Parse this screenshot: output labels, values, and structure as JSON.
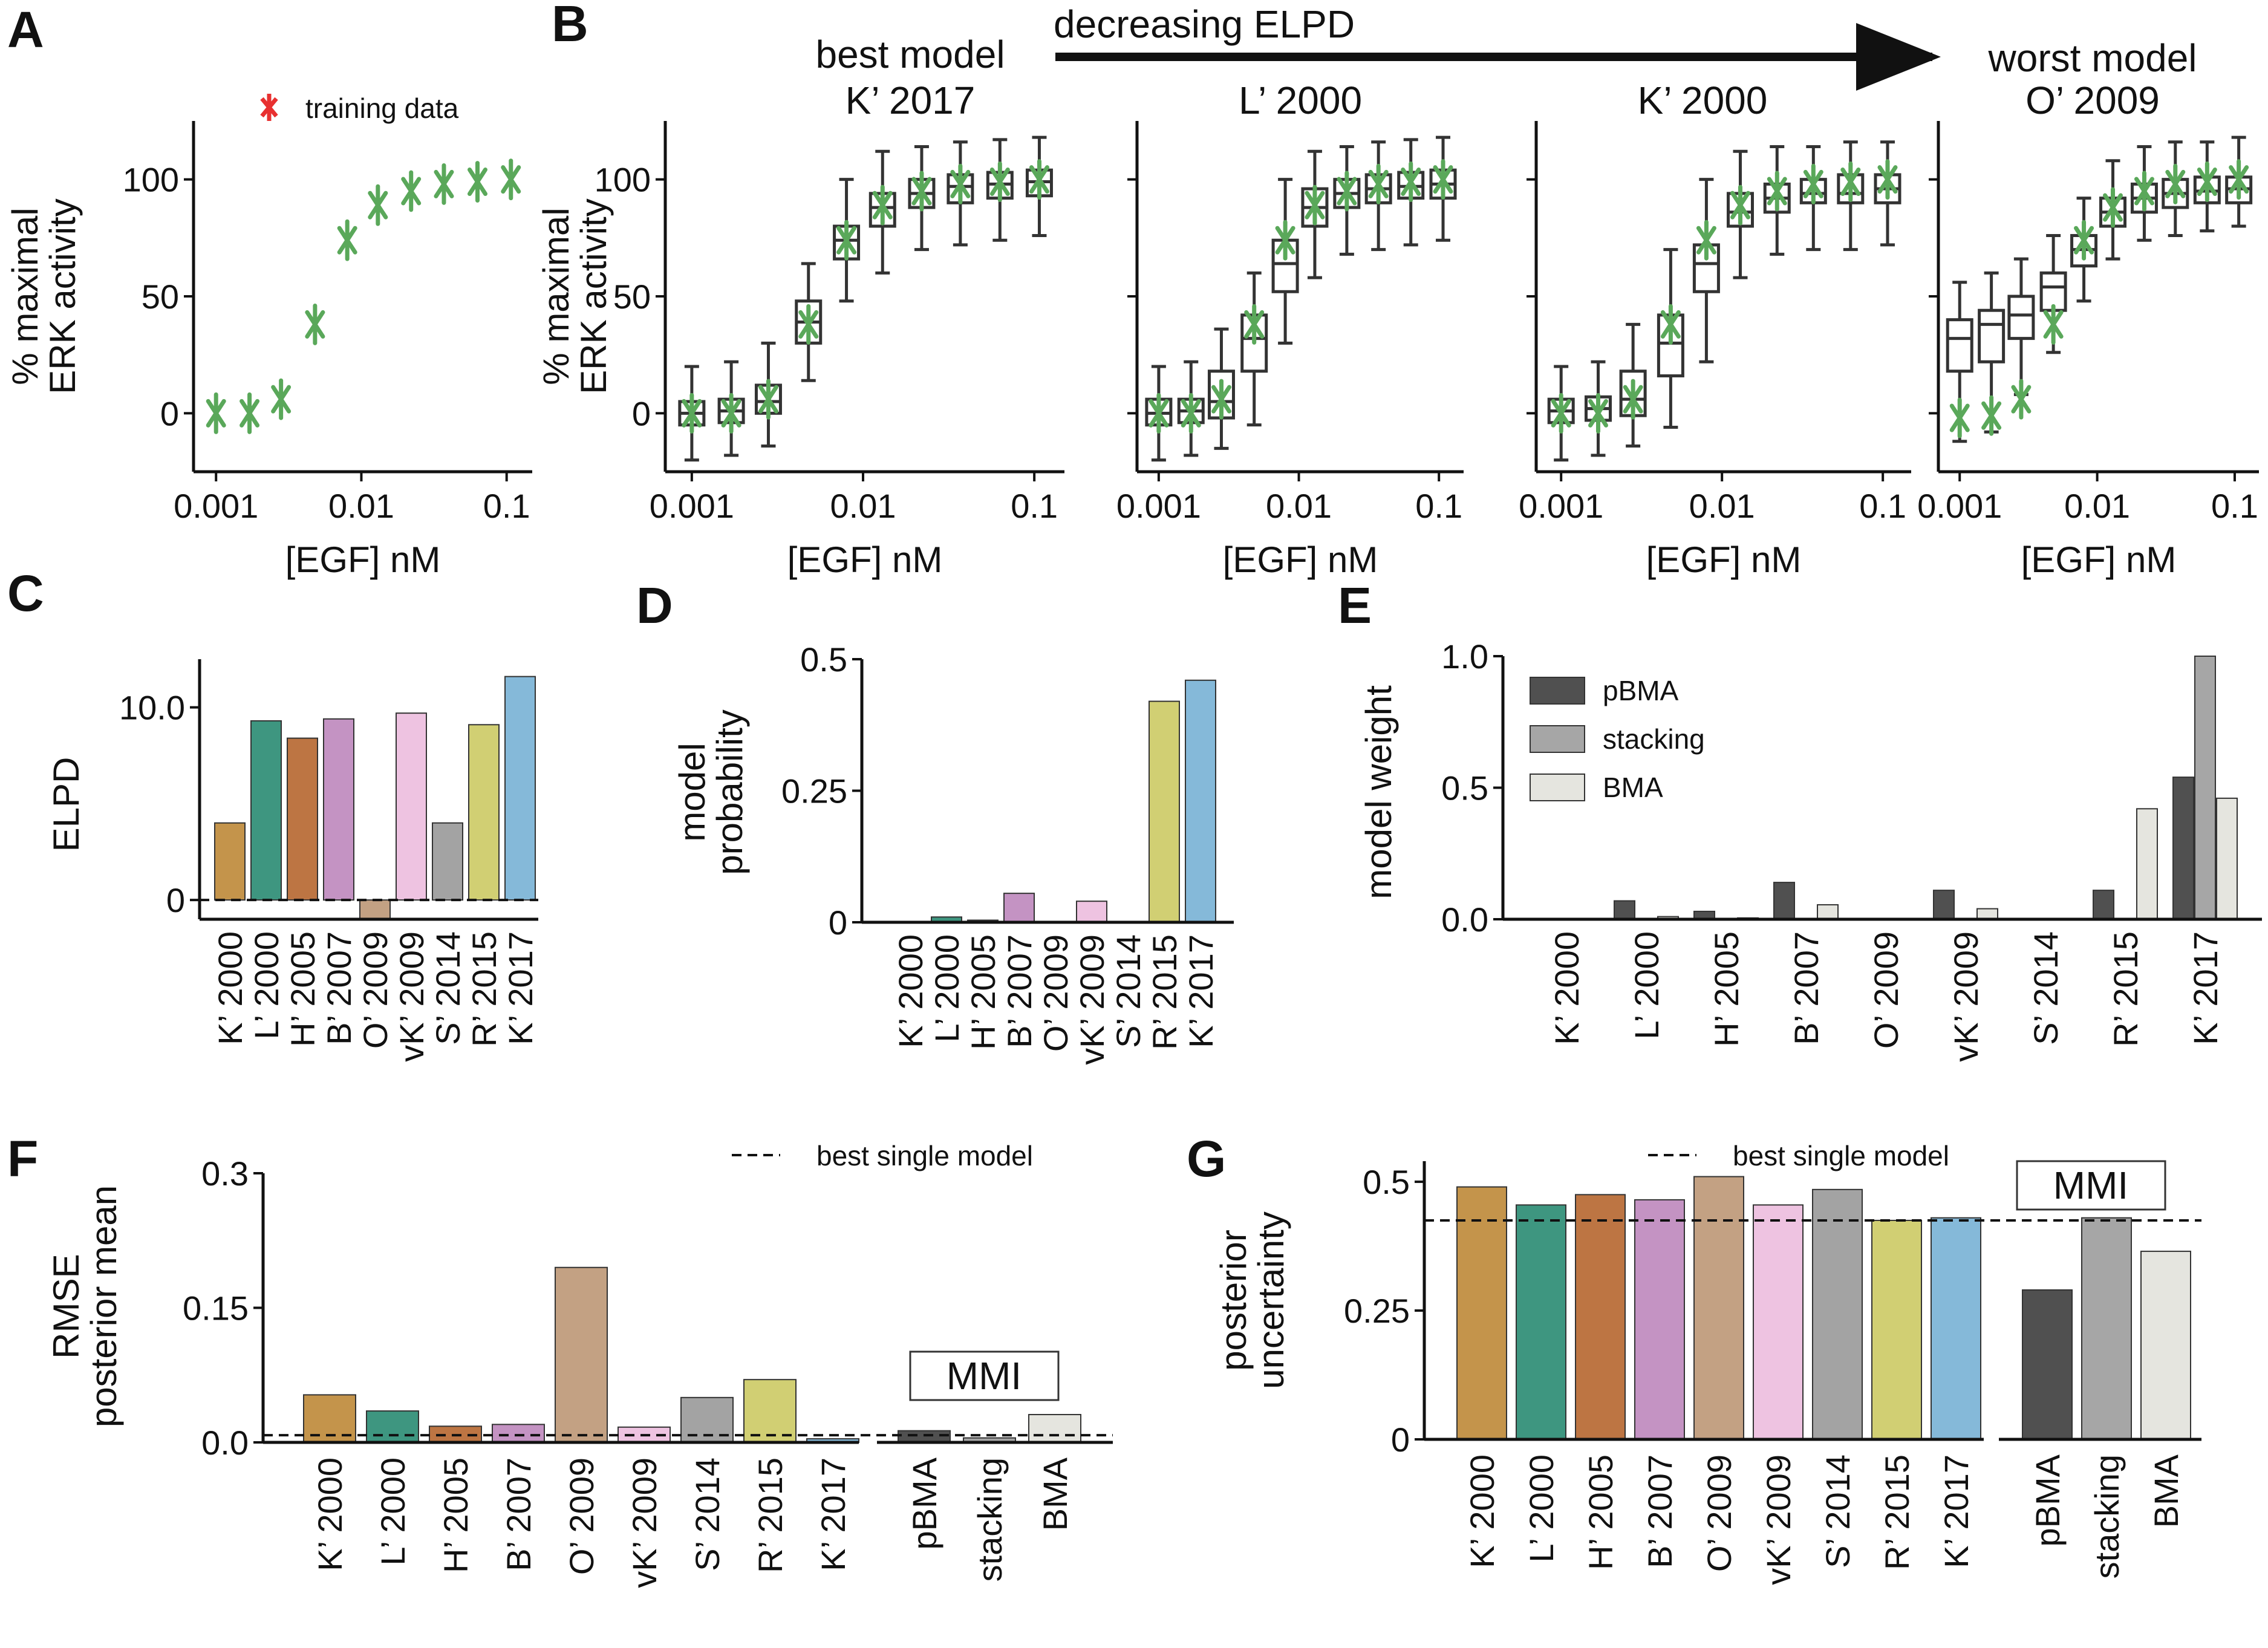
{
  "colors": {
    "green": "#5aa85a",
    "K2000": "#c4944b",
    "L2000": "#3e9680",
    "H2005": "#bd7543",
    "B2007": "#c493c3",
    "O2009": "#c3a183",
    "vK2009": "#eec3e1",
    "S2014": "#a3a3a3",
    "R2015": "#d1cf73",
    "K2017": "#85b9d9",
    "pBMA": "#505050",
    "stacking": "#a6a6a6",
    "BMA": "#e5e5df"
  },
  "panels": {
    "A": "A",
    "B": "B",
    "C": "C",
    "D": "D",
    "E": "E",
    "F": "F",
    "G": "G"
  },
  "header": {
    "decreasing": "decreasing ELPD",
    "best_model": "best model",
    "worst_model": "worst model"
  },
  "chart_data": [
    {
      "panel": "A",
      "type": "scatter",
      "legend": "training data",
      "xlabel": "[EGF] nM",
      "ylabel_line1": "% maximal",
      "ylabel_line2": "ERK activity",
      "xscale": "log",
      "xlim": [
        0.0007,
        0.15
      ],
      "ylim": [
        -25,
        125
      ],
      "xticks": [
        "0.001",
        "0.01",
        "0.1"
      ],
      "yticks": [
        "0",
        "50",
        "100"
      ],
      "x": [
        0.001,
        0.0017,
        0.0028,
        0.0048,
        0.008,
        0.013,
        0.022,
        0.037,
        0.063,
        0.107
      ],
      "y": [
        0,
        0,
        6,
        38,
        74,
        89,
        95,
        98,
        99,
        100
      ],
      "err": [
        8,
        8,
        8,
        8,
        8,
        8,
        8,
        8,
        8,
        8
      ]
    },
    {
      "panel": "B",
      "type": "box",
      "xlabel": "[EGF] nM",
      "ylabel_line1": "% maximal",
      "ylabel_line2": "ERK activity",
      "xticks": [
        "0.001",
        "0.01",
        "0.1"
      ],
      "yticks": [
        "0",
        "50",
        "100"
      ],
      "models": [
        {
          "name": "K’ 2017",
          "boxes": [
            [
              -20,
              -5,
              0,
              5,
              20
            ],
            [
              -18,
              -4,
              1,
              6,
              22
            ],
            [
              -14,
              0,
              5,
              12,
              30
            ],
            [
              14,
              30,
              39,
              48,
              64
            ],
            [
              48,
              66,
              74,
              80,
              100
            ],
            [
              60,
              80,
              88,
              94,
              112
            ],
            [
              70,
              88,
              94,
              100,
              114
            ],
            [
              72,
              90,
              97,
              102,
              116
            ],
            [
              74,
              92,
              98,
              103,
              117
            ],
            [
              76,
              93,
              99,
              104,
              118
            ]
          ]
        },
        {
          "name": "L’ 2000",
          "boxes": [
            [
              -20,
              -5,
              0,
              6,
              20
            ],
            [
              -18,
              -4,
              1,
              6,
              22
            ],
            [
              -15,
              -2,
              5,
              18,
              36
            ],
            [
              -5,
              18,
              32,
              42,
              60
            ],
            [
              30,
              52,
              64,
              74,
              100
            ],
            [
              58,
              80,
              88,
              96,
              112
            ],
            [
              68,
              88,
              94,
              100,
              114
            ],
            [
              70,
              90,
              96,
              102,
              116
            ],
            [
              72,
              92,
              97,
              103,
              117
            ],
            [
              74,
              92,
              98,
              104,
              118
            ]
          ]
        },
        {
          "name": "K’ 2000",
          "boxes": [
            [
              -20,
              -4,
              1,
              6,
              20
            ],
            [
              -18,
              -3,
              2,
              7,
              22
            ],
            [
              -14,
              -1,
              6,
              18,
              38
            ],
            [
              -6,
              16,
              30,
              42,
              70
            ],
            [
              22,
              52,
              64,
              72,
              100
            ],
            [
              58,
              80,
              86,
              94,
              112
            ],
            [
              68,
              86,
              92,
              98,
              114
            ],
            [
              70,
              90,
              94,
              100,
              114
            ],
            [
              70,
              90,
              94,
              102,
              116
            ],
            [
              72,
              90,
              96,
              102,
              116
            ]
          ]
        },
        {
          "name": "O’ 2009",
          "boxes": [
            [
              -12,
              18,
              32,
              40,
              56
            ],
            [
              -8,
              22,
              38,
              44,
              60
            ],
            [
              8,
              32,
              42,
              50,
              66
            ],
            [
              26,
              44,
              54,
              60,
              76
            ],
            [
              48,
              63,
              70,
              76,
              92
            ],
            [
              66,
              80,
              86,
              92,
              108
            ],
            [
              74,
              86,
              92,
              98,
              114
            ],
            [
              76,
              88,
              94,
              100,
              116
            ],
            [
              78,
              90,
              95,
              101,
              116
            ],
            [
              80,
              90,
              96,
              101,
              118
            ]
          ],
          "data_y": [
            -2,
            -1,
            6,
            38,
            74,
            88,
            95,
            98,
            99,
            100
          ]
        }
      ],
      "data_y": [
        0,
        0,
        6,
        38,
        74,
        89,
        95,
        98,
        99,
        100
      ]
    },
    {
      "panel": "C",
      "type": "bar",
      "ylabel": "ELPD",
      "yticks": [
        "0",
        "10.0"
      ],
      "ylim": [
        -1,
        12.5
      ],
      "categories": [
        "K’ 2000",
        "L’ 2000",
        "H’ 2005",
        "B’ 2007",
        "O’ 2009",
        "vK’ 2009",
        "S’ 2014",
        "R’ 2015",
        "K’ 2017"
      ],
      "values": [
        4.0,
        9.3,
        8.4,
        9.4,
        -1.0,
        9.7,
        4.0,
        9.1,
        11.6
      ]
    },
    {
      "panel": "D",
      "type": "bar",
      "ylabel_line1": "model",
      "ylabel_line2": "probability",
      "yticks": [
        "0",
        "0.25",
        "0.5"
      ],
      "ylim": [
        0,
        0.5
      ],
      "categories": [
        "K’ 2000",
        "L’ 2000",
        "H’ 2005",
        "B’ 2007",
        "O’ 2009",
        "vK’ 2009",
        "S’ 2014",
        "R’ 2015",
        "K’ 2017"
      ],
      "values": [
        0,
        0.01,
        0.004,
        0.055,
        0,
        0.04,
        0,
        0.42,
        0.46
      ]
    },
    {
      "panel": "E",
      "type": "bar",
      "ylabel": "model weight",
      "yticks": [
        "0.0",
        "0.5",
        "1.0"
      ],
      "ylim": [
        0,
        1.0
      ],
      "categories": [
        "K’ 2000",
        "L’ 2000",
        "H’ 2005",
        "B’ 2007",
        "O’ 2009",
        "vK’ 2009",
        "S’ 2014",
        "R’ 2015",
        "K’ 2017"
      ],
      "series": [
        {
          "name": "pBMA",
          "values": [
            0,
            0.07,
            0.03,
            0.14,
            0,
            0.11,
            0,
            0.11,
            0.54
          ]
        },
        {
          "name": "stacking",
          "values": [
            0,
            0,
            0,
            0,
            0,
            0,
            0,
            0,
            1.0
          ]
        },
        {
          "name": "BMA",
          "values": [
            0,
            0.01,
            0.005,
            0.055,
            0,
            0.04,
            0,
            0.42,
            0.46
          ]
        }
      ]
    },
    {
      "panel": "F",
      "type": "bar",
      "ylabel_line1": "RMSE",
      "ylabel_line2": "posterior mean",
      "yticks": [
        "0.0",
        "0.15",
        "0.3"
      ],
      "ylim": [
        0,
        0.3
      ],
      "legend": "best single model",
      "reference": 0.008,
      "mmi_label": "MMI",
      "categories": [
        "K’ 2000",
        "L’ 2000",
        "H’ 2005",
        "B’ 2007",
        "O’ 2009",
        "vK’ 2009",
        "S’ 2014",
        "R’ 2015",
        "K’ 2017"
      ],
      "values": [
        0.053,
        0.035,
        0.018,
        0.02,
        0.195,
        0.017,
        0.05,
        0.07,
        0.004
      ],
      "mmi_categories": [
        "pBMA",
        "stacking",
        "BMA"
      ],
      "mmi_values": [
        0.013,
        0.005,
        0.031
      ]
    },
    {
      "panel": "G",
      "type": "bar",
      "ylabel_line1": "posterior",
      "ylabel_line2": "uncertainty",
      "yticks": [
        "0",
        "0.25",
        "0.5"
      ],
      "ylim": [
        0,
        0.54
      ],
      "legend": "best single model",
      "reference": 0.425,
      "mmi_label": "MMI",
      "categories": [
        "K’ 2000",
        "L’ 2000",
        "H’ 2005",
        "B’ 2007",
        "O’ 2009",
        "vK’ 2009",
        "S’ 2014",
        "R’ 2015",
        "K’ 2017"
      ],
      "values": [
        0.49,
        0.455,
        0.475,
        0.465,
        0.51,
        0.455,
        0.485,
        0.425,
        0.43
      ],
      "mmi_categories": [
        "pBMA",
        "stacking",
        "BMA"
      ],
      "mmi_values": [
        0.29,
        0.43,
        0.365
      ]
    }
  ]
}
